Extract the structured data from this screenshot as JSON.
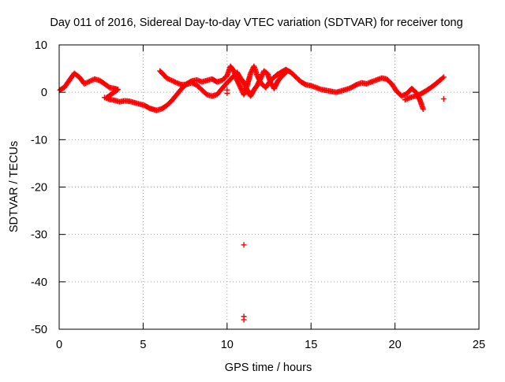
{
  "chart_data": {
    "type": "scatter",
    "title": "Day 011 of 2016, Sidereal Day-to-day VTEC variation (SDTVAR) for receiver tong",
    "xlabel": "GPS time / hours",
    "ylabel": "SDTVAR / TECUs",
    "xlim": [
      0,
      25
    ],
    "ylim": [
      -50,
      10
    ],
    "xticks": [
      0,
      5,
      10,
      15,
      20,
      25
    ],
    "yticks": [
      -50,
      -40,
      -30,
      -20,
      -10,
      0,
      10
    ],
    "xtick_labels": [
      "0",
      "5",
      "10",
      "15",
      "20",
      "25"
    ],
    "ytick_labels": [
      "-50",
      "-40",
      "-30",
      "-20",
      "-10",
      "0",
      "10"
    ],
    "grid": true,
    "marker": "+",
    "color": "#ff0000",
    "series": [
      {
        "name": "SDTVAR",
        "trace": [
          [
            0.05,
            0.5
          ],
          [
            0.3,
            1.0
          ],
          [
            0.6,
            2.5
          ],
          [
            0.9,
            4.0
          ],
          [
            1.2,
            3.2
          ],
          [
            1.5,
            1.8
          ],
          [
            1.8,
            2.3
          ],
          [
            2.1,
            2.8
          ],
          [
            2.4,
            2.5
          ],
          [
            2.7,
            1.8
          ],
          [
            3.0,
            1.0
          ],
          [
            3.3,
            0.8
          ],
          [
            3.5,
            0.6
          ],
          [
            2.8,
            -1.2
          ],
          [
            3.0,
            -1.5
          ],
          [
            3.3,
            -1.7
          ],
          [
            3.6,
            -2.0
          ],
          [
            3.9,
            -1.8
          ],
          [
            4.2,
            -1.9
          ],
          [
            4.5,
            -2.2
          ],
          [
            4.8,
            -2.5
          ],
          [
            5.1,
            -2.8
          ],
          [
            5.4,
            -3.4
          ],
          [
            5.8,
            -3.8
          ],
          [
            6.1,
            -3.5
          ],
          [
            6.4,
            -2.8
          ],
          [
            6.7,
            -1.8
          ],
          [
            7.0,
            -0.5
          ],
          [
            7.3,
            0.8
          ],
          [
            7.6,
            1.8
          ],
          [
            7.9,
            2.4
          ],
          [
            8.2,
            2.6
          ],
          [
            8.5,
            2.2
          ],
          [
            8.8,
            2.5
          ],
          [
            9.1,
            2.8
          ],
          [
            9.4,
            2.2
          ],
          [
            9.7,
            2.5
          ],
          [
            10.0,
            3.5
          ],
          [
            10.2,
            5.5
          ],
          [
            10.4,
            4.5
          ],
          [
            10.6,
            2.5
          ],
          [
            10.8,
            1.0
          ],
          [
            11.0,
            -0.5
          ],
          [
            11.2,
            1.5
          ],
          [
            11.4,
            4.0
          ],
          [
            11.6,
            5.5
          ],
          [
            11.8,
            3.5
          ],
          [
            12.0,
            2.0
          ],
          [
            12.3,
            1.0
          ],
          [
            12.6,
            2.5
          ],
          [
            12.9,
            3.5
          ],
          [
            13.2,
            4.2
          ],
          [
            13.5,
            4.8
          ],
          [
            13.8,
            4.2
          ],
          [
            14.1,
            3.2
          ],
          [
            14.4,
            2.2
          ],
          [
            14.7,
            1.6
          ],
          [
            15.0,
            1.4
          ],
          [
            15.3,
            1.0
          ],
          [
            15.6,
            0.6
          ],
          [
            15.9,
            0.4
          ],
          [
            16.2,
            0.2
          ],
          [
            16.5,
            0.0
          ],
          [
            16.8,
            0.3
          ],
          [
            17.1,
            0.6
          ],
          [
            17.4,
            1.0
          ],
          [
            17.7,
            1.6
          ],
          [
            18.0,
            2.0
          ],
          [
            18.3,
            1.8
          ],
          [
            18.6,
            2.2
          ],
          [
            18.9,
            2.6
          ],
          [
            19.2,
            3.0
          ],
          [
            19.5,
            2.8
          ],
          [
            19.8,
            1.8
          ],
          [
            20.1,
            0.2
          ],
          [
            20.4,
            -0.8
          ],
          [
            20.7,
            -0.3
          ],
          [
            21.0,
            0.8
          ],
          [
            21.3,
            -0.2
          ],
          [
            21.5,
            -1.8
          ],
          [
            21.7,
            -3.8
          ],
          [
            6.0,
            4.5
          ],
          [
            6.2,
            3.8
          ],
          [
            6.4,
            3.0
          ],
          [
            6.7,
            2.5
          ],
          [
            7.0,
            2.0
          ],
          [
            7.3,
            1.6
          ],
          [
            7.6,
            1.7
          ],
          [
            7.9,
            2.0
          ],
          [
            8.2,
            1.5
          ],
          [
            8.5,
            0.5
          ],
          [
            8.8,
            -0.5
          ],
          [
            9.1,
            -0.8
          ],
          [
            9.4,
            -0.5
          ],
          [
            9.7,
            0.8
          ],
          [
            10.0,
            2.0
          ],
          [
            10.6,
            4.2
          ],
          [
            10.8,
            3.0
          ],
          [
            11.0,
            2.0
          ],
          [
            11.2,
            0.5
          ],
          [
            11.4,
            -0.8
          ],
          [
            11.6,
            0.5
          ],
          [
            11.8,
            1.5
          ],
          [
            12.0,
            3.0
          ],
          [
            12.2,
            4.5
          ],
          [
            12.4,
            4.0
          ],
          [
            12.6,
            2.0
          ],
          [
            12.8,
            0.8
          ],
          [
            13.0,
            2.2
          ],
          [
            13.2,
            3.2
          ],
          [
            13.4,
            3.8
          ],
          [
            13.6,
            4.6
          ],
          [
            20.6,
            -1.6
          ],
          [
            20.9,
            -1.1
          ],
          [
            21.2,
            -0.8
          ],
          [
            21.5,
            -0.4
          ],
          [
            21.8,
            0.2
          ],
          [
            22.1,
            0.9
          ],
          [
            22.4,
            1.7
          ],
          [
            22.7,
            2.6
          ],
          [
            22.9,
            3.2
          ]
        ],
        "outliers": [
          [
            11.0,
            -32.2
          ],
          [
            11.0,
            -47.3
          ],
          [
            11.0,
            -48.0
          ],
          [
            10.0,
            -0.2
          ],
          [
            10.0,
            0.5
          ],
          [
            22.9,
            -1.4
          ],
          [
            2.7,
            -1.1
          ],
          [
            13.0,
            3.8
          ],
          [
            13.2,
            3.2
          ]
        ]
      }
    ]
  }
}
